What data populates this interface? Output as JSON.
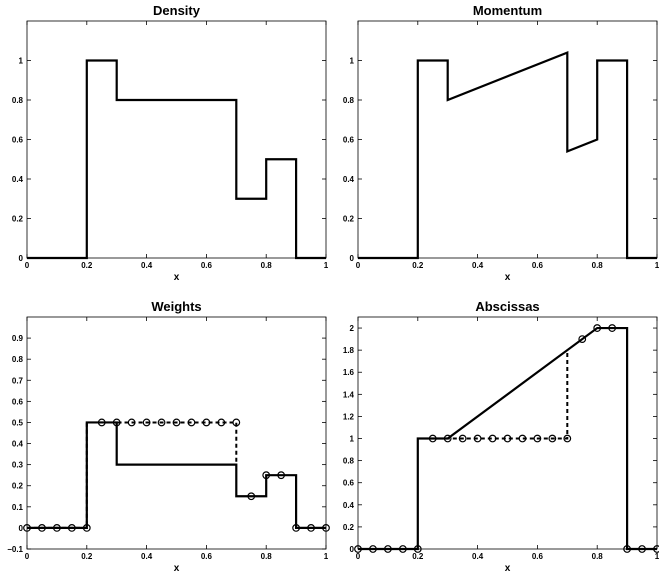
{
  "chart_data": [
    {
      "type": "line",
      "title": "Density",
      "xlabel": "x",
      "ylabel": "",
      "xlim": [
        0,
        1
      ],
      "ylim": [
        0,
        1.2
      ],
      "xticks": [
        "0",
        "0.2",
        "0.4",
        "0.6",
        "0.8",
        "1"
      ],
      "yticks": [
        "0",
        "0.2",
        "0.4",
        "0.6",
        "0.8",
        "1"
      ],
      "grid": false,
      "series": [
        {
          "style": "solid",
          "x": [
            0,
            0.2,
            0.2,
            0.3,
            0.3,
            0.7,
            0.7,
            0.8,
            0.8,
            0.9,
            0.9,
            1.0
          ],
          "y": [
            0,
            0,
            1,
            1,
            0.8,
            0.8,
            0.3,
            0.3,
            0.5,
            0.5,
            0,
            0
          ]
        }
      ]
    },
    {
      "type": "line",
      "title": "Momentum",
      "xlabel": "x",
      "ylabel": "",
      "xlim": [
        0,
        1
      ],
      "ylim": [
        0,
        1.2
      ],
      "xticks": [
        "0",
        "0.2",
        "0.4",
        "0.6",
        "0.8",
        "1"
      ],
      "yticks": [
        "0",
        "0.2",
        "0.4",
        "0.6",
        "0.8",
        "1"
      ],
      "grid": false,
      "series": [
        {
          "style": "solid",
          "x": [
            0,
            0.2,
            0.2,
            0.3,
            0.3,
            0.7,
            0.7,
            0.8,
            0.8,
            0.9,
            0.9,
            1.0
          ],
          "y": [
            0,
            0,
            1,
            1,
            0.8,
            1.04,
            0.54,
            0.6,
            1,
            1,
            0,
            0
          ]
        }
      ]
    },
    {
      "type": "line",
      "title": "Weights",
      "xlabel": "x",
      "ylabel": "",
      "xlim": [
        0,
        1
      ],
      "ylim": [
        -0.1,
        1.0
      ],
      "xticks": [
        "0",
        "0.2",
        "0.4",
        "0.6",
        "0.8",
        "1"
      ],
      "yticks": [
        "−0.1",
        "0",
        "0.1",
        "0.2",
        "0.3",
        "0.4",
        "0.5",
        "0.6",
        "0.7",
        "0.8",
        "0.9"
      ],
      "grid": false,
      "series": [
        {
          "style": "solid",
          "x": [
            0,
            0.2,
            0.2,
            0.3,
            0.3,
            0.7,
            0.7,
            0.8,
            0.8,
            0.9,
            0.9,
            1.0
          ],
          "y": [
            0,
            0,
            0.5,
            0.5,
            0.3,
            0.3,
            0.15,
            0.15,
            0.25,
            0.25,
            0,
            0
          ]
        },
        {
          "style": "dashed",
          "x": [
            0,
            0.2,
            0.2,
            0.7,
            0.7
          ],
          "y": [
            0,
            0,
            0.5,
            0.5,
            0.3
          ]
        },
        {
          "style": "markers",
          "marker": "circle",
          "x": [
            0,
            0.05,
            0.1,
            0.15,
            0.2,
            0.25,
            0.3,
            0.35,
            0.4,
            0.45,
            0.5,
            0.55,
            0.6,
            0.65,
            0.7,
            0.75,
            0.8,
            0.85,
            0.9,
            0.95,
            1.0
          ],
          "y": [
            0,
            0,
            0,
            0,
            0,
            0.5,
            0.5,
            0.5,
            0.5,
            0.5,
            0.5,
            0.5,
            0.5,
            0.5,
            0.5,
            0.15,
            0.25,
            0.25,
            0,
            0,
            0
          ]
        }
      ]
    },
    {
      "type": "line",
      "title": "Abscissas",
      "xlabel": "x",
      "ylabel": "",
      "xlim": [
        0,
        1
      ],
      "ylim": [
        0,
        2.1
      ],
      "xticks": [
        "0",
        "0.2",
        "0.4",
        "0.6",
        "0.8",
        "1"
      ],
      "yticks": [
        "0",
        "0.2",
        "0.4",
        "0.6",
        "0.8",
        "1",
        "1.2",
        "1.4",
        "1.6",
        "1.8",
        "2"
      ],
      "grid": false,
      "series": [
        {
          "style": "solid",
          "x": [
            0,
            0.2,
            0.2,
            0.3,
            0.8,
            0.9,
            0.9,
            1.0
          ],
          "y": [
            0,
            0,
            1,
            1,
            2,
            2,
            0,
            0
          ]
        },
        {
          "style": "dashed",
          "x": [
            0.2,
            0.7,
            0.7
          ],
          "y": [
            1,
            1,
            1.8
          ]
        },
        {
          "style": "markers",
          "marker": "circle",
          "x": [
            0,
            0.05,
            0.1,
            0.15,
            0.2,
            0.25,
            0.3,
            0.35,
            0.4,
            0.45,
            0.5,
            0.55,
            0.6,
            0.65,
            0.7,
            0.75,
            0.8,
            0.85,
            0.9,
            0.95,
            1.0
          ],
          "y": [
            0,
            0,
            0,
            0,
            0,
            1,
            1,
            1,
            1,
            1,
            1,
            1,
            1,
            1,
            1,
            1.9,
            2,
            2,
            0,
            0,
            0
          ]
        }
      ]
    }
  ]
}
